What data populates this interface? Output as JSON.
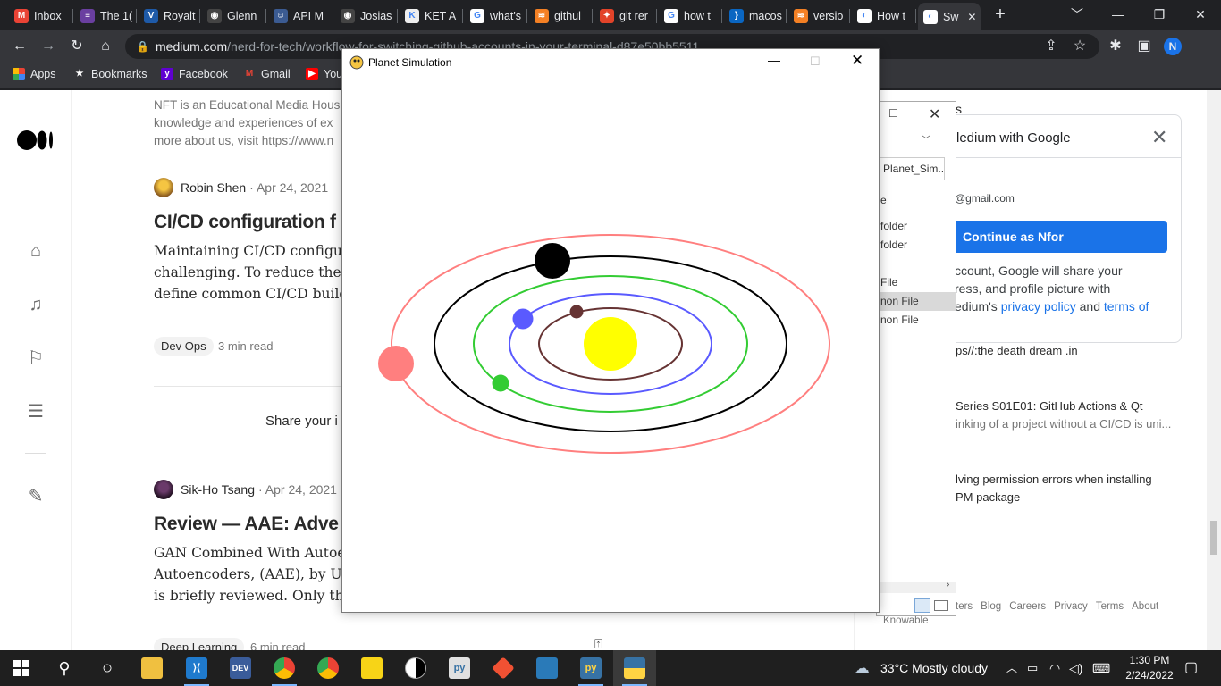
{
  "browser": {
    "tabs": [
      {
        "label": "Inbox",
        "icon": "gmail-icon",
        "color": "#ea4335",
        "glyph": "M"
      },
      {
        "label": "The 1(",
        "icon": "purple-site-icon",
        "color": "#6a3fa0",
        "glyph": "≡"
      },
      {
        "label": "Royalt",
        "icon": "v-icon",
        "color": "#1e5aa8",
        "glyph": "V"
      },
      {
        "label": "Glenn",
        "icon": "github-icon",
        "color": "#444",
        "glyph": "◉"
      },
      {
        "label": "API M",
        "icon": "postman-icon",
        "color": "#3b5b92",
        "glyph": "☺"
      },
      {
        "label": "Josias",
        "icon": "github-icon",
        "color": "#444",
        "glyph": "◉"
      },
      {
        "label": "KET A",
        "icon": "ket-icon",
        "color": "#eee",
        "glyph": "K"
      },
      {
        "label": "what's",
        "icon": "google-icon",
        "color": "#fff",
        "glyph": "G"
      },
      {
        "label": "githul",
        "icon": "stackoverflow-icon",
        "color": "#f48024",
        "glyph": "≋"
      },
      {
        "label": "git rer",
        "icon": "gitlab-icon",
        "color": "#e24329",
        "glyph": "✦"
      },
      {
        "label": "how t",
        "icon": "google-icon",
        "color": "#fff",
        "glyph": "G"
      },
      {
        "label": "macos",
        "icon": "bracket-icon",
        "color": "#0a66c2",
        "glyph": "}"
      },
      {
        "label": "versio",
        "icon": "stackoverflow-icon",
        "color": "#f48024",
        "glyph": "≋"
      },
      {
        "label": "How t",
        "icon": "globe-icon",
        "color": "#fff",
        "glyph": "◐"
      },
      {
        "label": "Sw",
        "icon": "globe-icon",
        "color": "#fff",
        "glyph": "◐"
      }
    ],
    "new_tab": "+",
    "url_host": "medium.com",
    "url_path": "/nerd-for-tech/workflow-for-switching-github-accounts-in-your-terminal-d87e50bb5511",
    "profile_initial": "N",
    "bookmarks": [
      {
        "label": "Apps",
        "icon": "apps-grid-icon"
      },
      {
        "label": "Bookmarks",
        "icon": "star-icon"
      },
      {
        "label": "Facebook",
        "icon": "yahoo-icon"
      },
      {
        "label": "Gmail",
        "icon": "gmail-icon"
      },
      {
        "label": "You",
        "icon": "youtube-icon"
      }
    ]
  },
  "medium": {
    "intro_lines": [
      "NFT is an Educational Media Hous",
      "knowledge and experiences of ex",
      "more about us, visit https://www.n"
    ],
    "post1": {
      "author": "Robin Shen",
      "date": "· Apr 24, 2021",
      "title": "CI/CD configuration f",
      "lines": [
        "Maintaining CI/CD configurat",
        "challenging. To reduce the ove",
        "define common CI/CD buildin"
      ],
      "tag": "Dev Ops",
      "read": "3 min read"
    },
    "share_prompt": "Share your i",
    "post2": {
      "author": "Sik-Ho Tsang",
      "date": "· Apr 24, 2021",
      "title": "Review — AAE: Adve",
      "lines": [
        "GAN Combined With Autoence",
        "Autoencoders, (AAE), by Unive",
        "is briefly reviewed. Only the A"
      ],
      "tag": "Deep Learning",
      "read": "6 min read"
    },
    "sidebar": {
      "partial_header": "s",
      "links": [
        {
          "title": "ps//:the death dream .in",
          "sub": ""
        },
        {
          "title": "Series S01E01: GitHub Actions & Qt",
          "sub": "inking of a project without a CI/CD is uni..."
        },
        {
          "title": "lving permission errors when installing",
          "sub": "PM package"
        }
      ],
      "footer": [
        "ters",
        "Blog",
        "Careers",
        "Privacy",
        "Terms",
        "About"
      ],
      "footer2": "Knowable"
    }
  },
  "google_signin": {
    "title": "ledium with Google",
    "email": "@gmail.com",
    "button": "Continue as Nfor",
    "body_lines": [
      "ccount, Google will share your",
      "ress, and profile picture with",
      "edium's"
    ],
    "privacy": "privacy policy",
    "and": "and",
    "terms": "terms of"
  },
  "explorer": {
    "path": "Planet_Sim...",
    "items": [
      "e",
      "folder",
      "folder",
      "File",
      "non File",
      "non File"
    ]
  },
  "sim_window": {
    "title": "Planet Simulation",
    "sun_color": "#ffff00",
    "bodies": [
      {
        "name": "mars",
        "color": "#663333"
      },
      {
        "name": "venus",
        "color": "#5a5aff"
      },
      {
        "name": "earth",
        "color": "#33cc33"
      },
      {
        "name": "jupiter",
        "color": "#000000"
      },
      {
        "name": "saturn",
        "color": "#ff7f7f"
      }
    ]
  },
  "taskbar": {
    "weather": "33°C  Mostly cloudy",
    "time": "1:30 PM",
    "date": "2/24/2022"
  }
}
